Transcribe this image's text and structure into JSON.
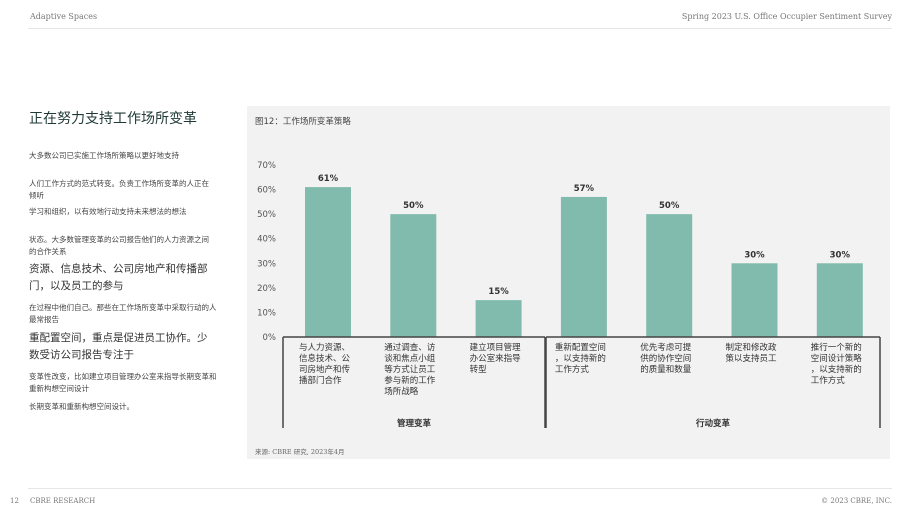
{
  "header": {
    "left": "Adaptive Spaces",
    "right": "Spring 2023 U.S. Office Occupier Sentiment Survey"
  },
  "footer": {
    "page": "12",
    "brand": "CBRE RESEARCH",
    "copyright": "© 2023 CBRE, INC."
  },
  "sidebar": {
    "title": "正在努力支持工作场所变革",
    "lines": [
      "大多数公司已实施工作场所策略以更好地支持",
      "人们工作方式的范式转变。负责工作场所变革的人正在倾听",
      "学习和组织，以有效地行动支持未来想法的想法",
      "状态。大多数管理变革的公司报告他们的人力资源之间的合作关系",
      "资源、信息技术、公司房地产和传播部门，以及员工的参与",
      "在过程中他们自己。那些在工作场所变革中采取行动的人最常报告",
      "重配置空间，重点是促进员工协作。少数受访公司报告专注于",
      "变革性改变，比如建立项目管理办公室来指导长期变革和重新构想空间设计",
      "长期变革和重新构想空间设计。"
    ]
  },
  "figure": {
    "title": "图12：工作场所变革策略",
    "source": "来源: CBRE 研究, 2023年4月"
  },
  "chart_data": {
    "type": "bar",
    "title": "图12：工作场所变革策略",
    "categories": [
      "与人力资源、信息技术、公司房地产和传播部门合作",
      "通过调查、访谈和焦点小组等方式让员工参与新的工作场所战略",
      "建立项目管理办公室来指导转型",
      "重新配置空间，以支持新的工作方式",
      "优先考虑可提供的协作空间的质量和数量",
      "制定和修改政策以支持员工",
      "推行一个新的空间设计策略，以支持新的工作方式"
    ],
    "values": [
      61,
      50,
      15,
      57,
      50,
      30,
      30
    ],
    "value_labels": [
      "61%",
      "50%",
      "15%",
      "57%",
      "50%",
      "30%",
      "30%"
    ],
    "ylim": [
      0,
      70
    ],
    "yticks": [
      "0%",
      "10%",
      "20%",
      "30%",
      "40%",
      "50%",
      "60%",
      "70%"
    ],
    "groups": [
      {
        "name": "管理变革",
        "categories": [
          0,
          1,
          2
        ]
      },
      {
        "name": "行动变革",
        "categories": [
          3,
          4,
          5,
          6
        ]
      }
    ],
    "color": "#80bbad",
    "grid": false,
    "legend": "none"
  }
}
